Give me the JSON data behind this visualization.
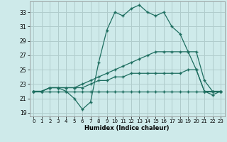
{
  "title": "",
  "xlabel": "Humidex (Indice chaleur)",
  "bg_color": "#ceeaea",
  "grid_color": "#b0cccc",
  "line_color": "#1e6e60",
  "xlim": [
    -0.5,
    23.5
  ],
  "ylim": [
    18.5,
    34.5
  ],
  "xticks": [
    0,
    1,
    2,
    3,
    4,
    5,
    6,
    7,
    8,
    9,
    10,
    11,
    12,
    13,
    14,
    15,
    16,
    17,
    18,
    19,
    20,
    21,
    22,
    23
  ],
  "yticks": [
    19,
    21,
    23,
    25,
    27,
    29,
    31,
    33
  ],
  "series": [
    [
      22,
      22,
      22.5,
      22.5,
      22,
      21,
      19.5,
      20.5,
      26,
      30.5,
      33,
      32.5,
      33.5,
      34,
      33,
      32.5,
      33,
      31,
      30,
      27.5,
      25,
      22,
      21.5,
      22
    ],
    [
      22,
      22,
      22.5,
      22.5,
      22.5,
      22.5,
      23,
      23.5,
      24,
      24.5,
      25,
      25.5,
      26,
      26.5,
      27,
      27.5,
      27.5,
      27.5,
      27.5,
      27.5,
      27.5,
      23.5,
      22,
      22
    ],
    [
      22,
      22,
      22.5,
      22.5,
      22.5,
      22.5,
      22.5,
      23,
      23.5,
      23.5,
      24,
      24,
      24.5,
      24.5,
      24.5,
      24.5,
      24.5,
      24.5,
      24.5,
      25,
      25,
      22,
      22,
      22
    ],
    [
      22,
      22,
      22,
      22,
      22,
      22,
      22,
      22,
      22,
      22,
      22,
      22,
      22,
      22,
      22,
      22,
      22,
      22,
      22,
      22,
      22,
      22,
      22,
      22
    ]
  ]
}
